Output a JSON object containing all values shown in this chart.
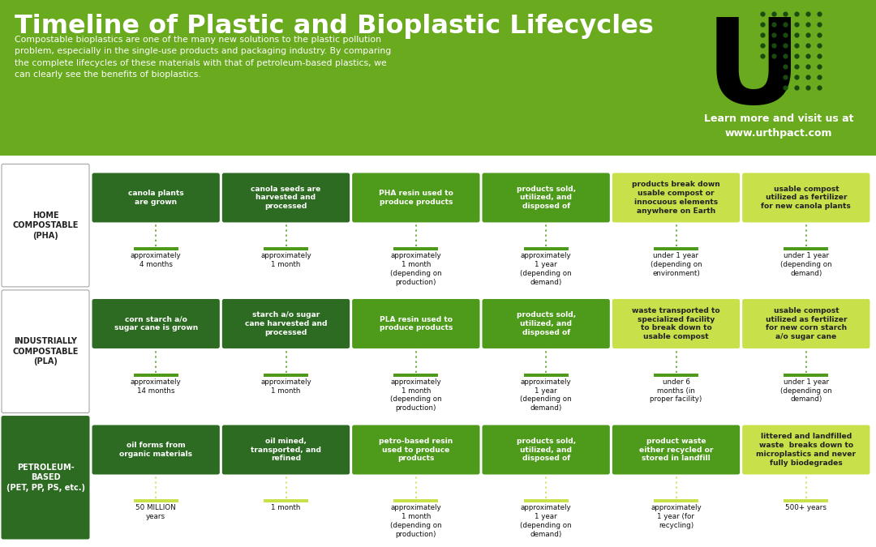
{
  "title": "Timeline of Plastic and Bioplastic Lifecycles",
  "subtitle": "Compostable bioplastics are one of the many new solutions to the plastic pollution\nproblem, especially in the single-use products and packaging industry. By comparing\nthe complete lifecycles of these materials with that of petroleum-based plastics, we\ncan clearly see the benefits of bioplastics.",
  "logo_text": "Learn more and visit us at\nwww.urthpact.com",
  "header_bg": "#6aaa1e",
  "body_bg": "#ffffff",
  "dark_green": "#2d6b22",
  "mid_green": "#4e9a1a",
  "light_green": "#c8e04a",
  "rows": [
    {
      "label": "HOME\nCOMPOSTABLE\n(PHA)",
      "label_bg": "#ffffff",
      "label_color": "#222222",
      "boxes": [
        {
          "text": "canola plants\nare grown",
          "bg": "#2d6b22",
          "text_color": "#ffffff"
        },
        {
          "text": "canola seeds are\nharvested and\nprocessed",
          "bg": "#2d6b22",
          "text_color": "#ffffff"
        },
        {
          "text": "PHA resin used to\nproduce products",
          "bg": "#4e9a1a",
          "text_color": "#ffffff"
        },
        {
          "text": "products sold,\nutilized, and\ndisposed of",
          "bg": "#4e9a1a",
          "text_color": "#ffffff"
        },
        {
          "text": "products break down\nusable compost or\ninnocuous elements\nanywhere on Earth",
          "bg": "#c8e04a",
          "text_color": "#222222"
        },
        {
          "text": "usable compost\nutilized as fertilizer\nfor new canola plants",
          "bg": "#c8e04a",
          "text_color": "#222222"
        }
      ],
      "times": [
        "approximately\n4 months",
        "approximately\n1 month",
        "approximately\n1 month\n(depending on\nproduction)",
        "approximately\n1 year\n(depending on\ndemand)",
        "under 1 year\n(depending on\nenvironment)",
        "under 1 year\n(depending on\ndemand)"
      ],
      "bar_color": "#4e9a1a"
    },
    {
      "label": "INDUSTRIALLY\nCOMPOSTABLE\n(PLA)",
      "label_bg": "#ffffff",
      "label_color": "#222222",
      "boxes": [
        {
          "text": "corn starch a/o\nsugar cane is grown",
          "bg": "#2d6b22",
          "text_color": "#ffffff"
        },
        {
          "text": "starch a/o sugar\ncane harvested and\nprocessed",
          "bg": "#2d6b22",
          "text_color": "#ffffff"
        },
        {
          "text": "PLA resin used to\nproduce products",
          "bg": "#4e9a1a",
          "text_color": "#ffffff"
        },
        {
          "text": "products sold,\nutilized, and\ndisposed of",
          "bg": "#4e9a1a",
          "text_color": "#ffffff"
        },
        {
          "text": "waste transported to\nspecialized facility\nto break down to\nusable compost",
          "bg": "#c8e04a",
          "text_color": "#222222"
        },
        {
          "text": "usable compost\nutilized as fertilizer\nfor new corn starch\na/o sugar cane",
          "bg": "#c8e04a",
          "text_color": "#222222"
        }
      ],
      "times": [
        "approximately\n14 months",
        "approximately\n1 month",
        "approximately\n1 month\n(depending on\nproduction)",
        "approximately\n1 year\n(depending on\ndemand)",
        "under 6\nmonths (in\nproper facility)",
        "under 1 year\n(depending on\ndemand)"
      ],
      "bar_color": "#4e9a1a"
    },
    {
      "label": "PETROLEUM-\nBASED\n(PET, PP, PS, etc.)",
      "label_bg": "#2d6b22",
      "label_color": "#ffffff",
      "boxes": [
        {
          "text": "oil forms from\norganic materials",
          "bg": "#2d6b22",
          "text_color": "#ffffff"
        },
        {
          "text": "oil mined,\ntransported, and\nrefined",
          "bg": "#2d6b22",
          "text_color": "#ffffff"
        },
        {
          "text": "petro-based resin\nused to produce\nproducts",
          "bg": "#4e9a1a",
          "text_color": "#ffffff"
        },
        {
          "text": "products sold,\nutilized, and\ndisposed of",
          "bg": "#4e9a1a",
          "text_color": "#ffffff"
        },
        {
          "text": "product waste\neither recycled or\nstored in landfill",
          "bg": "#4e9a1a",
          "text_color": "#ffffff"
        },
        {
          "text": "littered and landfilled\nwaste  breaks down to\nmicroplastics and never\nfully biodegrades",
          "bg": "#c8e04a",
          "text_color": "#222222"
        }
      ],
      "times": [
        "50 MILLION\nyears",
        "1 month",
        "approximately\n1 month\n(depending on\nproduction)",
        "approximately\n1 year\n(depending on\ndemand)",
        "approximately\n1 year (for\nrecycling)",
        "500+ years"
      ],
      "bar_color": "#c8e04a"
    }
  ]
}
